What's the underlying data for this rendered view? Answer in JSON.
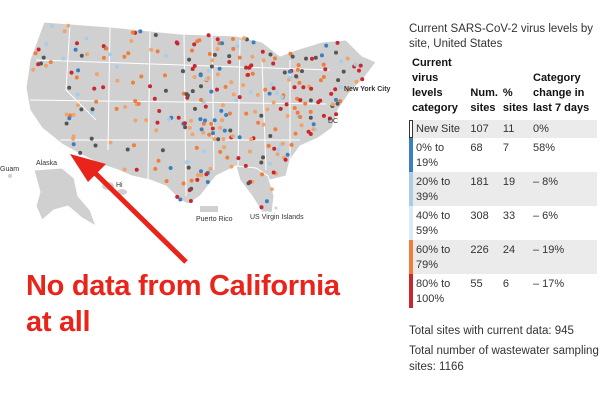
{
  "map": {
    "labels": {
      "new_york_city": "New York City",
      "dc": "DC",
      "guam": "Guam",
      "alaska": "Alaska",
      "hawaii": "Hi",
      "puerto_rico": "Puerto Rico",
      "us_virgin_islands": "US Virgin Islands"
    },
    "colors": {
      "land": "#d0d0d0",
      "border": "#ffffff",
      "new_site": "#555555",
      "low": "#3a7fc1",
      "moderate": "#a9cde8",
      "elevated": "#f0a36a",
      "high": "#ef7d3c",
      "very_high": "#c8272e"
    }
  },
  "callout": {
    "line1": "No data from California",
    "line2": "at all",
    "color": "#e8241b"
  },
  "panel": {
    "title": "Current SARS-CoV-2 virus levels by site, United States",
    "headers": {
      "category": "Current virus levels category",
      "sites": "Num. sites",
      "pct": "% sites",
      "change": "Category change in last 7 days"
    },
    "rows": [
      {
        "label": "New Site",
        "sites": "107",
        "pct": "11",
        "change": "0%",
        "color": "#ffffff",
        "border": "#333333"
      },
      {
        "label": "0% to 19%",
        "sites": "68",
        "pct": "7",
        "change": "58%",
        "color": "#3a7fc1"
      },
      {
        "label": "20% to 39%",
        "sites": "181",
        "pct": "19",
        "change": "– 8%",
        "color": "#a9cde8"
      },
      {
        "label": "40% to 59%",
        "sites": "308",
        "pct": "33",
        "change": "– 6%",
        "color": "#dbeaf4"
      },
      {
        "label": "60% to 79%",
        "sites": "226",
        "pct": "24",
        "change": "– 19%",
        "color": "#ef7d3c"
      },
      {
        "label": "80% to 100%",
        "sites": "55",
        "pct": "6",
        "change": "– 17%",
        "color": "#c8272e"
      }
    ]
  },
  "totals": {
    "current": "Total sites with current data: 945",
    "sampling": "Total number of wastewater sampling sites: 1166"
  }
}
